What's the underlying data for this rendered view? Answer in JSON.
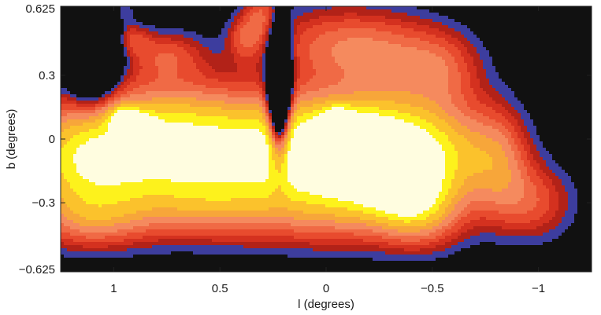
{
  "chart_data": {
    "type": "heatmap",
    "title": "",
    "xlabel": "l (degrees)",
    "ylabel": "b (degrees)",
    "xlim": [
      1.25,
      -1.25
    ],
    "ylim": [
      -0.625,
      0.625
    ],
    "x_ticks": [
      {
        "value": 1.0,
        "label": "1"
      },
      {
        "value": 0.5,
        "label": "0.5"
      },
      {
        "value": 0.0,
        "label": "0"
      },
      {
        "value": -0.5,
        "label": "−0.5"
      },
      {
        "value": -1.0,
        "label": "−1"
      }
    ],
    "y_ticks": [
      {
        "value": 0.625,
        "label": "0.625"
      },
      {
        "value": 0.3,
        "label": "0.3"
      },
      {
        "value": 0.0,
        "label": "0"
      },
      {
        "value": -0.3,
        "label": "−0.3"
      },
      {
        "value": -0.625,
        "label": "−0.625"
      }
    ],
    "background_color": "#111111",
    "colors": [
      "#3d3d9e",
      "#b22218",
      "#d4311f",
      "#e84b2e",
      "#f06a45",
      "#f58a5e",
      "#f7a63a",
      "#fbc22c",
      "#fdf21c",
      "#fffde0"
    ],
    "components": [
      {
        "l": 1.15,
        "b": -0.1,
        "sl": 0.22,
        "sb": 0.2,
        "amp": 2.4
      },
      {
        "l": 0.72,
        "b": -0.02,
        "sl": 0.26,
        "sb": 0.2,
        "amp": 2.5
      },
      {
        "l": 0.09,
        "b": -0.05,
        "sl": 0.32,
        "sb": 0.18,
        "amp": 3.2
      },
      {
        "l": -0.2,
        "b": -0.07,
        "sl": 0.17,
        "sb": 0.16,
        "amp": 1.7
      },
      {
        "l": -0.5,
        "b": -0.08,
        "sl": 0.22,
        "sb": 0.18,
        "amp": 2.2
      },
      {
        "l": -0.38,
        "b": -0.25,
        "sl": 0.12,
        "sb": 0.09,
        "amp": 1.1
      },
      {
        "l": 0.95,
        "b": 0.1,
        "sl": 0.05,
        "sb": 0.04,
        "amp": 1.4
      },
      {
        "l": 0.86,
        "b": 0.06,
        "sl": 0.05,
        "sb": 0.04,
        "amp": 1.0
      },
      {
        "l": -0.05,
        "b": 0.1,
        "sl": 0.05,
        "sb": 0.04,
        "amp": 1.0
      },
      {
        "l": 0.96,
        "b": 0.6,
        "sl": 0.04,
        "sb": 0.06,
        "amp": 0.85
      },
      {
        "l": 0.92,
        "b": 0.47,
        "sl": 0.06,
        "sb": 0.05,
        "amp": 0.85
      },
      {
        "l": 0.75,
        "b": 0.4,
        "sl": 0.13,
        "sb": 0.08,
        "amp": 0.9
      },
      {
        "l": 0.38,
        "b": 0.48,
        "sl": 0.06,
        "sb": 0.08,
        "amp": 0.95
      },
      {
        "l": 0.3,
        "b": 0.6,
        "sl": 0.06,
        "sb": 0.08,
        "amp": 0.9
      },
      {
        "l": 0.0,
        "b": 0.45,
        "sl": 0.22,
        "sb": 0.13,
        "amp": 1.0
      },
      {
        "l": -0.3,
        "b": 0.4,
        "sl": 0.2,
        "sb": 0.14,
        "amp": 0.95
      },
      {
        "l": -0.55,
        "b": 0.33,
        "sl": 0.14,
        "sb": 0.13,
        "amp": 0.9
      },
      {
        "l": -0.82,
        "b": -0.1,
        "sl": 0.1,
        "sb": 0.18,
        "amp": 0.95
      },
      {
        "l": -0.98,
        "b": -0.3,
        "sl": 0.14,
        "sb": 0.13,
        "amp": 1.0
      },
      {
        "l": 1.1,
        "b": -0.38,
        "sl": 0.2,
        "sb": 0.1,
        "amp": 0.9
      },
      {
        "l": 0.55,
        "b": -0.32,
        "sl": 0.25,
        "sb": 0.12,
        "amp": 1.0
      },
      {
        "l": -0.05,
        "b": -0.35,
        "sl": 0.3,
        "sb": 0.13,
        "amp": 1.0
      },
      {
        "l": -0.45,
        "b": -0.38,
        "sl": 0.14,
        "sb": 0.11,
        "amp": 0.95
      }
    ],
    "voids": [
      {
        "l": 1.1,
        "b": 0.45,
        "sl": 0.08,
        "sb": 0.17,
        "amp": 3.0
      },
      {
        "l": 0.22,
        "b": 0.2,
        "sl": 0.035,
        "sb": 0.2,
        "amp": 4.0
      }
    ]
  }
}
